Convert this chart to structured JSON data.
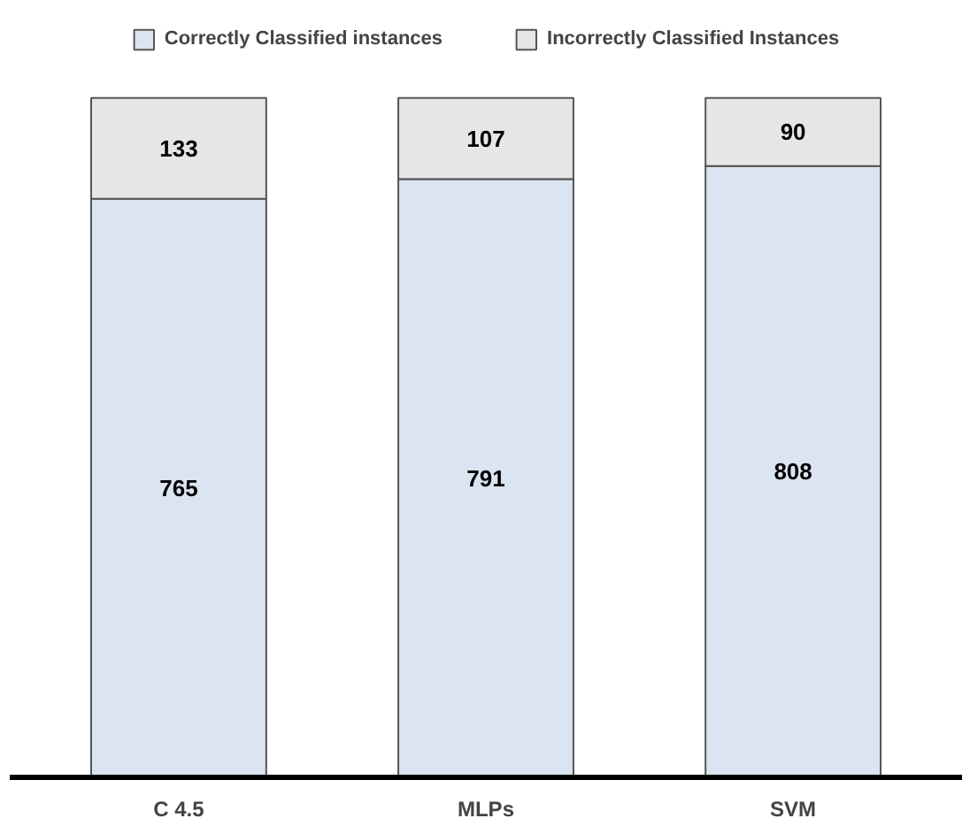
{
  "chart_data": {
    "type": "bar",
    "stacked": true,
    "categories": [
      "C 4.5",
      "MLPs",
      "SVM"
    ],
    "series": [
      {
        "name": "Correctly Classified instances",
        "color": "#dbe5f1",
        "values": [
          765,
          791,
          808
        ]
      },
      {
        "name": "Incorrectly Classified Instances",
        "color": "#e6e6e6",
        "values": [
          133,
          107,
          90
        ]
      }
    ],
    "data_labels": true,
    "legend": "top",
    "grid": false
  }
}
